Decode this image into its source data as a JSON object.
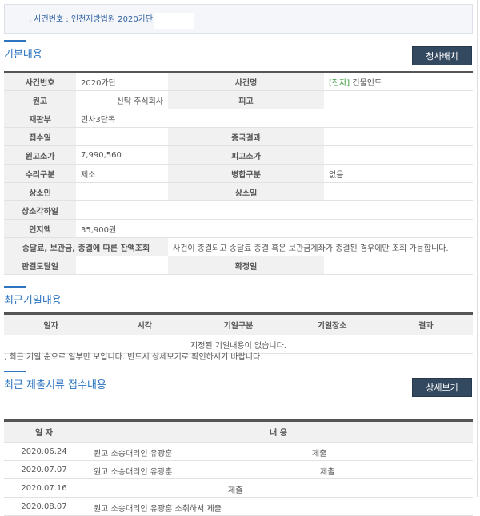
{
  "case_header": "‚ 사건번호 : 인천지방법원 2020가단",
  "basic": {
    "title": "기본내용",
    "button": "청사배치",
    "rows": [
      {
        "l1": "사건번호",
        "v1": "2020가단",
        "l2": "사건명",
        "tag": "[전자]",
        "v2": "건물인도"
      },
      {
        "l1": "원고",
        "v1": "신탁 주식회사",
        "l2": "피고",
        "v2": ""
      },
      {
        "l1": "재판부",
        "v1": "민사3단독"
      },
      {
        "l1": "접수일",
        "v1": "",
        "l2": "종국결과",
        "v2": ""
      },
      {
        "l1": "원고소가",
        "v1": "7,990,560",
        "l2": "피고소가",
        "v2": ""
      },
      {
        "l1": "수리구분",
        "v1": "제소",
        "l2": "병합구분",
        "v2": "없음"
      },
      {
        "l1": "상소인",
        "v1": "",
        "l2": "상소일",
        "v2": ""
      },
      {
        "l1": "상소각하일",
        "v1": ""
      },
      {
        "l1": "인지액",
        "v1": "35,900원"
      },
      {
        "l1": "송달료, 보관금, 종결에 따른 잔액조회",
        "v1": "사건이 종결되고 송달료 종결 혹은 보관금계좌가 종결된 경우에만 조회 가능합니다."
      },
      {
        "l1": "판결도달일",
        "v1": "",
        "l2": "확정일",
        "v2": ""
      }
    ]
  },
  "hearing": {
    "title": "최근기일내용",
    "columns": [
      "일자",
      "시각",
      "기일구분",
      "기일장소",
      "결과"
    ],
    "empty": "지정된 기일내용이 없습니다.",
    "note": "‚ 최근 기일 순으로 일부만 보입니다. 반드시 상세보기로 확인하시기 바랍니다."
  },
  "docs": {
    "title": "최근 제출서류 접수내용",
    "button": "상세보기",
    "columns": [
      "일 자",
      "내 용"
    ],
    "rows": [
      {
        "date": "2020.06.24",
        "a": "원고 소송대리인 유광훈",
        "b": "제출"
      },
      {
        "date": "2020.07.07",
        "a": "원고 소송대리인 유광훈",
        "b": "제출"
      },
      {
        "date": "2020.07.16",
        "a": "",
        "b": "제출"
      },
      {
        "date": "2020.08.07",
        "a": "원고 소송대리인 유광훈 소취하서 제출",
        "b": ""
      }
    ]
  },
  "colors": {
    "accent": "#2d75c0",
    "button": "#33495f",
    "tag": "#3a9a3a"
  }
}
